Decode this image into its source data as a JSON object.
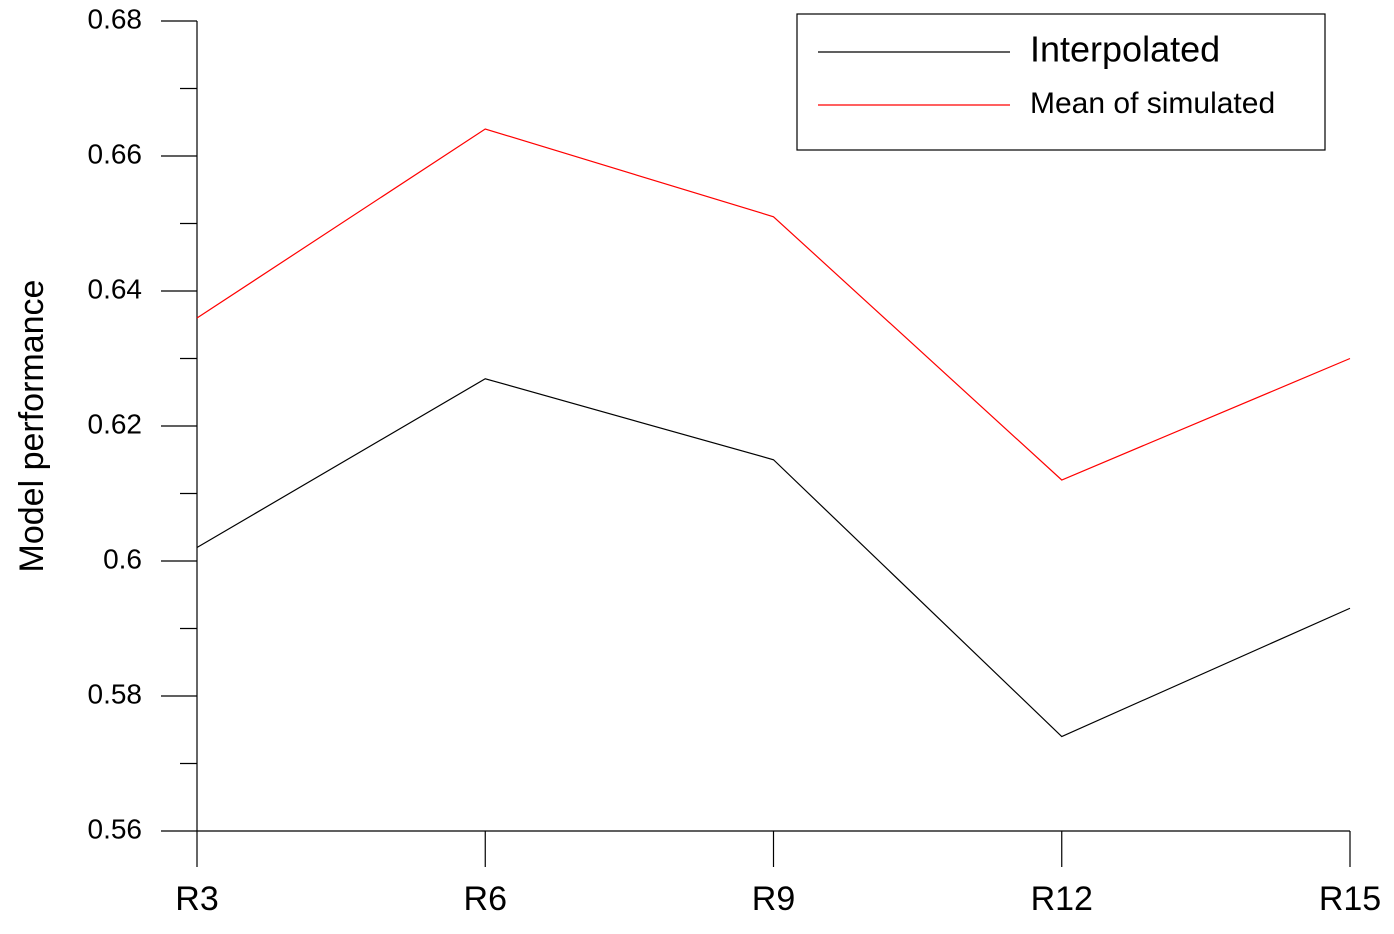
{
  "chart_data": {
    "type": "line",
    "y_label": "Model performance",
    "categories": [
      "R3",
      "R6",
      "R9",
      "R12",
      "R15"
    ],
    "series": [
      {
        "name": "Interpolated",
        "color": "#000000",
        "values": [
          0.602,
          0.627,
          0.615,
          0.574,
          0.593
        ]
      },
      {
        "name": "Mean of simulated",
        "color": "#ff0000",
        "values": [
          0.636,
          0.664,
          0.651,
          0.612,
          0.63
        ]
      }
    ],
    "ylim": [
      0.56,
      0.68
    ],
    "yticks": [
      0.56,
      0.58,
      0.6,
      0.62,
      0.64,
      0.66,
      0.68
    ],
    "yminorticks": [
      0.57,
      0.59,
      0.61,
      0.63,
      0.65,
      0.67
    ],
    "legend": "upper right",
    "grid": false
  }
}
